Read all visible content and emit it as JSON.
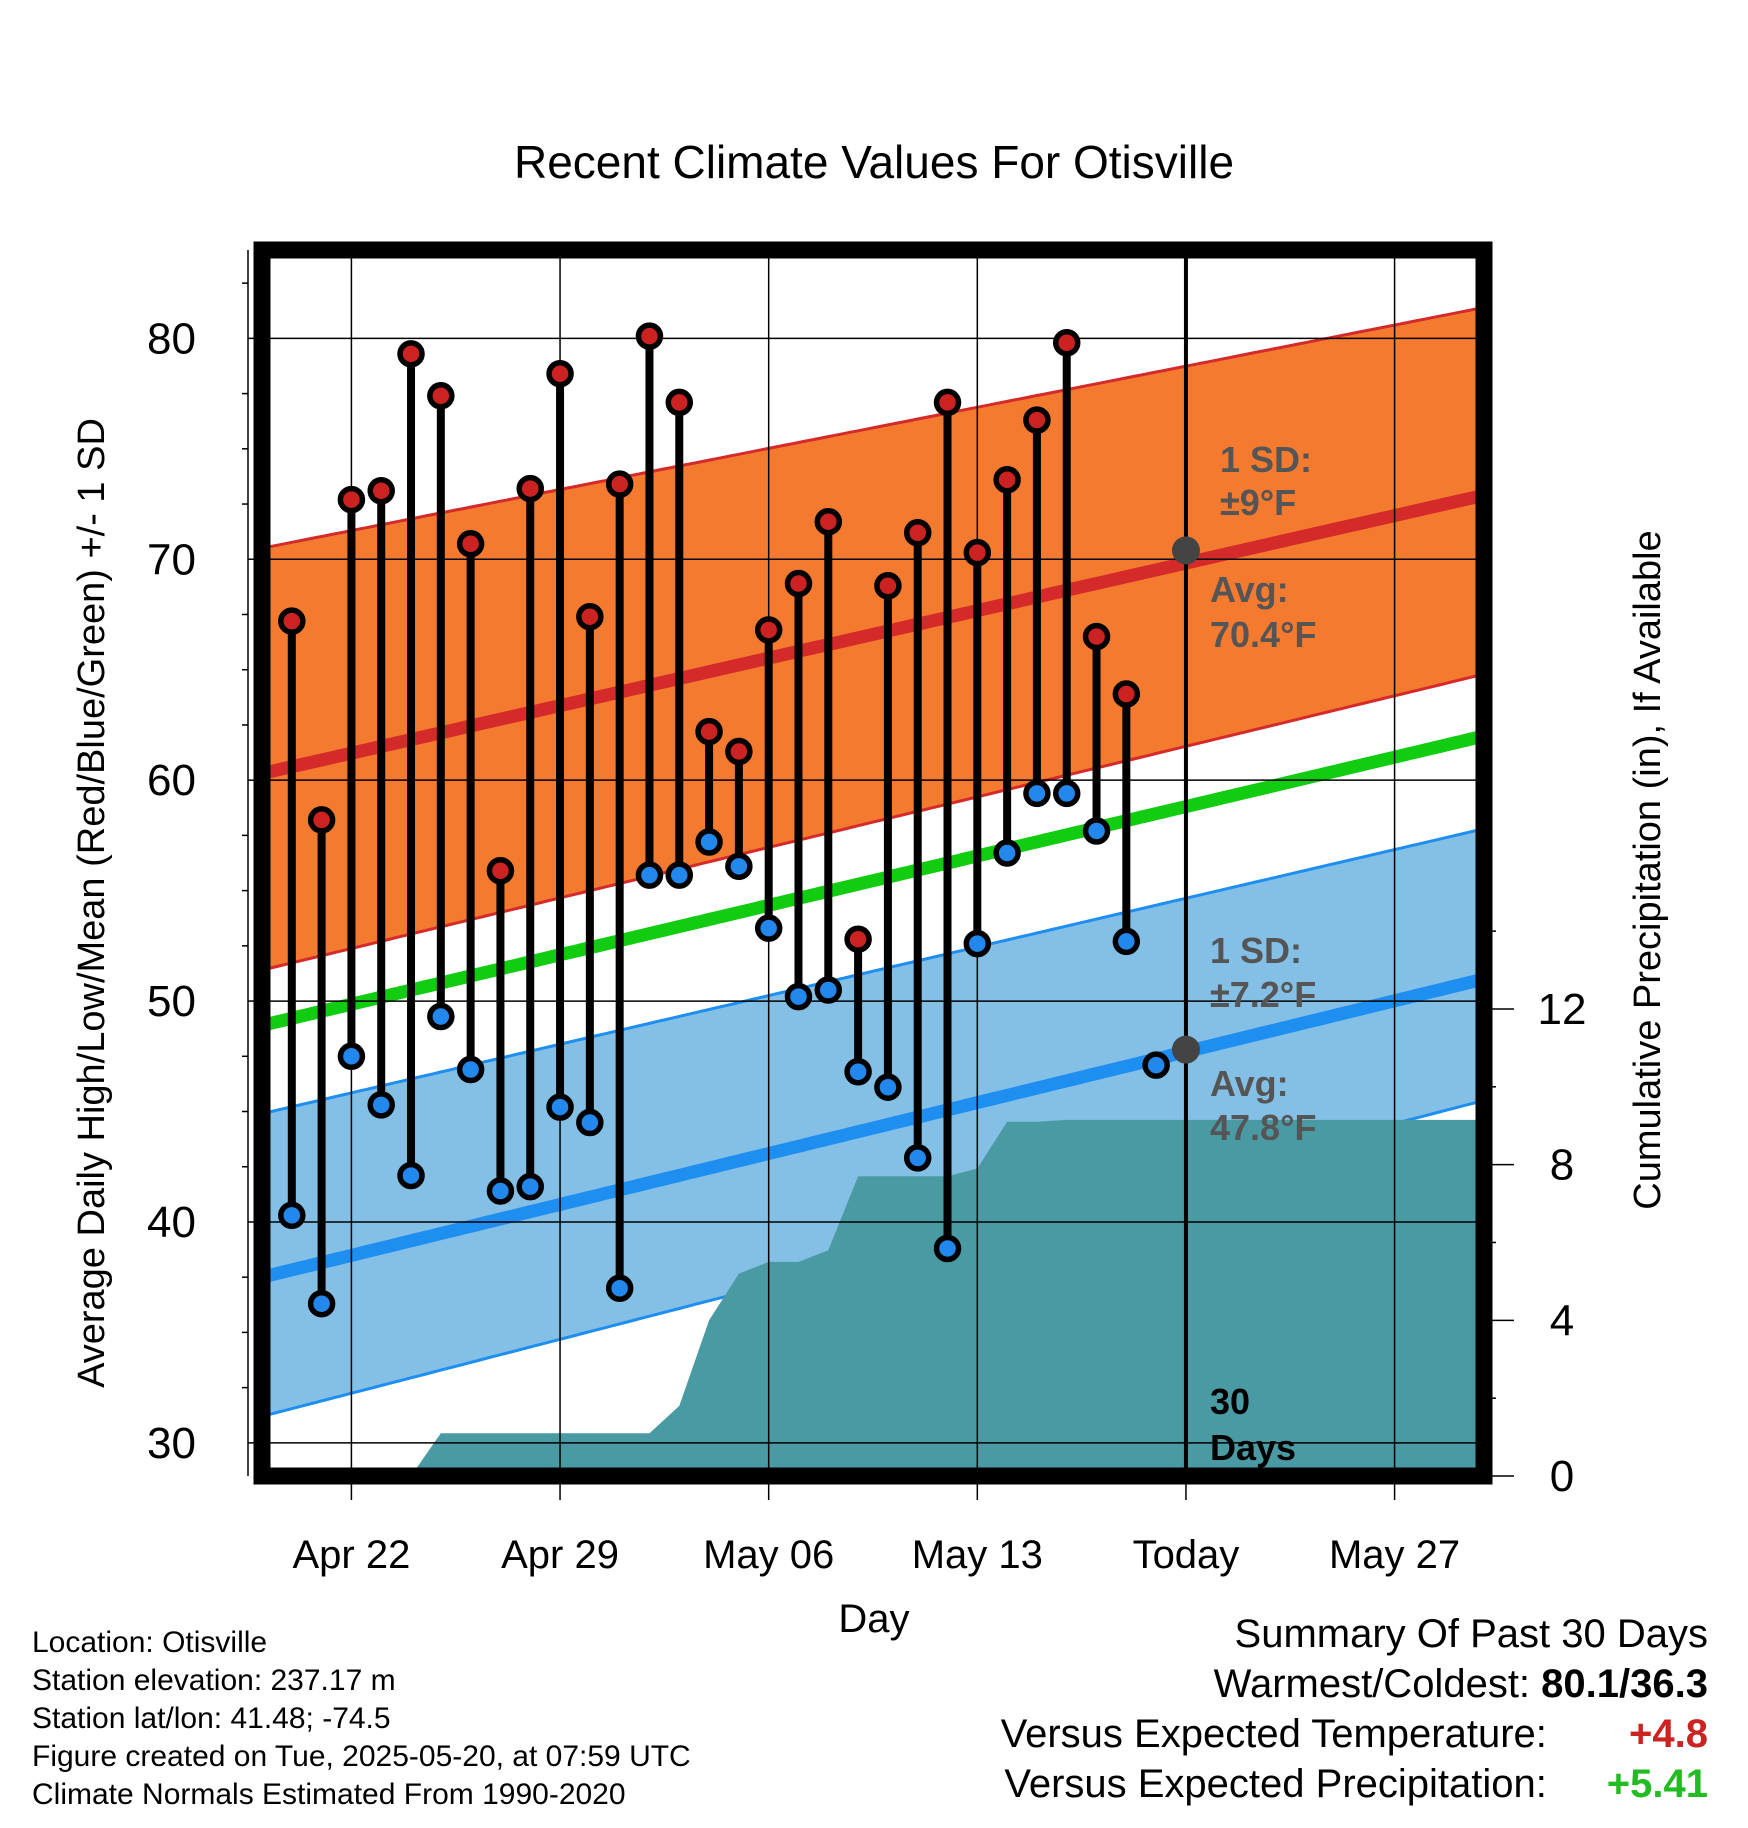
{
  "chart_data": {
    "type": "line",
    "title": "Recent Climate Values For Otisville",
    "xlabel": "Day",
    "ylabel": "Average Daily High/Low/Mean (Red/Blue/Green) +/- 1 SD",
    "ylabel_right": "Cumulative Precipitation (in), If Available",
    "ylim": [
      28.5,
      84
    ],
    "ylim_right": [
      0,
      31.5
    ],
    "x_range": [
      "2025-04-19",
      "2025-05-30"
    ],
    "x_ticks": [
      {
        "date": "2025-04-22",
        "label": "Apr 22"
      },
      {
        "date": "2025-04-29",
        "label": "Apr 29"
      },
      {
        "date": "2025-05-06",
        "label": "May 06"
      },
      {
        "date": "2025-05-13",
        "label": "May 13"
      },
      {
        "date": "2025-05-20",
        "label": "Today"
      },
      {
        "date": "2025-05-27",
        "label": "May 27"
      }
    ],
    "y_ticks": [
      30,
      40,
      50,
      60,
      70,
      80
    ],
    "y_ticks_right": [
      0,
      4,
      8,
      12
    ],
    "grid": true,
    "today": "2025-05-20",
    "today_label_line1": "30",
    "today_label_line2": "Days",
    "normals": {
      "start": "2025-04-19",
      "end": "2025-05-30",
      "high_avg": [
        60.3,
        72.9
      ],
      "high_upper": [
        70.5,
        81.4
      ],
      "high_lower": [
        51.4,
        64.8
      ],
      "low_avg": [
        37.5,
        51.0
      ],
      "low_upper": [
        44.9,
        57.8
      ],
      "low_lower": [
        31.2,
        45.5
      ],
      "mean_avg": [
        48.9,
        62.0
      ]
    },
    "annotations": {
      "high_sd_line1": "1 SD:",
      "high_sd_line2": "±9°F",
      "high_avg_line1": "Avg:",
      "high_avg_line2": "70.4°F",
      "high_avg_value": 70.4,
      "low_sd_line1": "1 SD:",
      "low_sd_line2": "±7.2°F",
      "low_avg_line1": "Avg:",
      "low_avg_line2": "47.8°F",
      "low_avg_value": 47.8
    },
    "days": [
      "2025-04-20",
      "2025-04-21",
      "2025-04-22",
      "2025-04-23",
      "2025-04-24",
      "2025-04-25",
      "2025-04-26",
      "2025-04-27",
      "2025-04-28",
      "2025-04-29",
      "2025-04-30",
      "2025-05-01",
      "2025-05-02",
      "2025-05-03",
      "2025-05-04",
      "2025-05-05",
      "2025-05-06",
      "2025-05-07",
      "2025-05-08",
      "2025-05-09",
      "2025-05-10",
      "2025-05-11",
      "2025-05-12",
      "2025-05-13",
      "2025-05-14",
      "2025-05-15",
      "2025-05-16",
      "2025-05-17",
      "2025-05-18",
      "2025-05-19"
    ],
    "series": [
      {
        "name": "High",
        "color": "#cc2222",
        "values": [
          67.2,
          58.2,
          72.7,
          73.1,
          79.3,
          77.4,
          70.7,
          55.9,
          73.2,
          78.4,
          67.4,
          73.4,
          80.1,
          77.1,
          62.2,
          61.3,
          66.8,
          68.9,
          71.7,
          52.8,
          68.8,
          71.2,
          77.1,
          70.3,
          73.6,
          76.3,
          79.8,
          66.5,
          63.9,
          null
        ]
      },
      {
        "name": "Low",
        "color": "#2288ee",
        "values": [
          40.3,
          36.3,
          47.5,
          45.3,
          42.1,
          49.3,
          46.9,
          41.4,
          41.6,
          45.2,
          44.5,
          37.0,
          55.7,
          55.7,
          57.2,
          56.1,
          53.3,
          50.2,
          50.5,
          46.8,
          46.1,
          42.9,
          38.8,
          52.6,
          56.7,
          59.4,
          59.4,
          57.7,
          52.7,
          47.1
        ]
      }
    ],
    "precipitation": [
      {
        "date": "2025-04-21",
        "value": 0.0
      },
      {
        "date": "2025-04-22",
        "value": 0.0
      },
      {
        "date": "2025-04-23",
        "value": 0.0
      },
      {
        "date": "2025-04-24",
        "value": 0.0
      },
      {
        "date": "2025-04-25",
        "value": 1.1
      },
      {
        "date": "2025-04-26",
        "value": 1.1
      },
      {
        "date": "2025-04-27",
        "value": 1.1
      },
      {
        "date": "2025-04-28",
        "value": 1.1
      },
      {
        "date": "2025-04-29",
        "value": 1.1
      },
      {
        "date": "2025-04-30",
        "value": 1.1
      },
      {
        "date": "2025-05-01",
        "value": 1.1
      },
      {
        "date": "2025-05-02",
        "value": 1.1
      },
      {
        "date": "2025-05-03",
        "value": 1.8
      },
      {
        "date": "2025-05-04",
        "value": 4.0
      },
      {
        "date": "2025-05-05",
        "value": 5.2
      },
      {
        "date": "2025-05-06",
        "value": 5.5
      },
      {
        "date": "2025-05-07",
        "value": 5.5
      },
      {
        "date": "2025-05-08",
        "value": 5.8
      },
      {
        "date": "2025-05-09",
        "value": 7.7
      },
      {
        "date": "2025-05-10",
        "value": 7.7
      },
      {
        "date": "2025-05-11",
        "value": 7.7
      },
      {
        "date": "2025-05-12",
        "value": 7.7
      },
      {
        "date": "2025-05-13",
        "value": 7.9
      },
      {
        "date": "2025-05-14",
        "value": 9.1
      },
      {
        "date": "2025-05-15",
        "value": 9.1
      },
      {
        "date": "2025-05-16",
        "value": 9.15
      },
      {
        "date": "2025-05-17",
        "value": 9.15
      },
      {
        "date": "2025-05-18",
        "value": 9.15
      },
      {
        "date": "2025-05-19",
        "value": 9.15
      },
      {
        "date": "2025-05-20",
        "value": 9.15
      },
      {
        "date": "2025-05-30",
        "value": 9.15
      }
    ]
  },
  "colors": {
    "high_band": "#f47a30",
    "high_line": "#d42a2a",
    "low_band": "#84c0e6",
    "low_line": "#1e8ef0",
    "mean_line": "#11cc11",
    "precip": "#4a9aa4",
    "high_marker": "#cc2222",
    "low_marker": "#2288ee",
    "avg_marker": "#444444",
    "annotation_text": "#555555"
  },
  "info": {
    "location": "Location: Otisville",
    "elevation": "Station elevation: 237.17 m",
    "latlon": "Station lat/lon: 41.48; -74.5",
    "created": "Figure created on Tue, 2025-05-20, at 07:59 UTC",
    "normals": "Climate Normals Estimated From 1990-2020"
  },
  "summary": {
    "title": "Summary Of Past 30 Days",
    "warmest_label": "Warmest/Coldest:",
    "warmest_value": "80.1/36.3",
    "temp_label": "Versus Expected Temperature:",
    "temp_value": "+4.8",
    "precip_label": "Versus Expected Precipitation:",
    "precip_value": "+5.41"
  }
}
